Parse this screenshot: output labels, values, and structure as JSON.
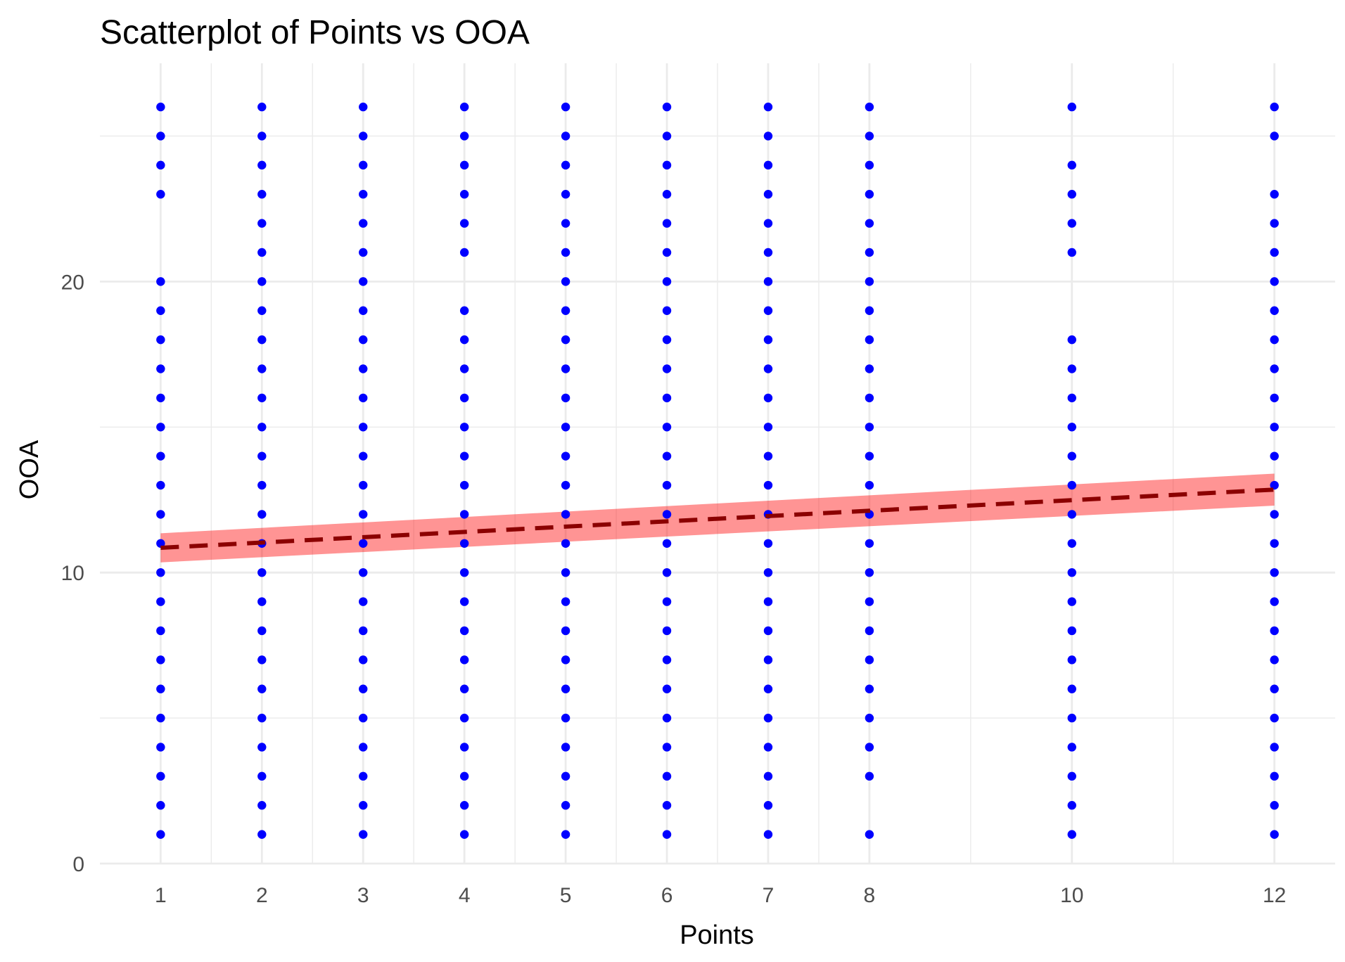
{
  "chart_data": {
    "type": "scatter",
    "title": "Scatterplot of Points vs  OOA",
    "xlabel": "Points",
    "ylabel": "OOA",
    "xlim": [
      0.4,
      12.6
    ],
    "ylim": [
      0,
      27.5
    ],
    "x_ticks": [
      1,
      2,
      3,
      4,
      5,
      6,
      7,
      8,
      10,
      12
    ],
    "x_tick_labels": [
      "1",
      "2",
      "3",
      "4",
      "5",
      "6",
      "7",
      "8",
      "10",
      "12"
    ],
    "y_ticks": [
      0,
      10,
      20
    ],
    "y_tick_labels": [
      "0",
      "10",
      "20"
    ],
    "grid": true,
    "legend": "none",
    "point_color": "#0000ff",
    "series": [
      {
        "points_by_x": [
          {
            "x": 1,
            "y": [
              1,
              2,
              3,
              4,
              5,
              6,
              7,
              8,
              9,
              10,
              11,
              12,
              13,
              14,
              15,
              16,
              17,
              18,
              19,
              20,
              23,
              24,
              25,
              26
            ]
          },
          {
            "x": 2,
            "y": [
              1,
              2,
              3,
              4,
              5,
              6,
              7,
              8,
              9,
              10,
              11,
              12,
              13,
              14,
              15,
              16,
              17,
              18,
              19,
              20,
              21,
              22,
              23,
              24,
              25,
              26
            ]
          },
          {
            "x": 3,
            "y": [
              1,
              2,
              3,
              4,
              5,
              6,
              7,
              8,
              9,
              10,
              11,
              12,
              13,
              14,
              15,
              16,
              17,
              18,
              19,
              20,
              21,
              22,
              23,
              24,
              25,
              26
            ]
          },
          {
            "x": 4,
            "y": [
              1,
              2,
              3,
              4,
              5,
              6,
              7,
              8,
              9,
              10,
              11,
              12,
              13,
              14,
              15,
              16,
              17,
              18,
              19,
              21,
              22,
              23,
              24,
              25,
              26
            ]
          },
          {
            "x": 5,
            "y": [
              1,
              2,
              3,
              4,
              5,
              6,
              7,
              8,
              9,
              10,
              11,
              12,
              13,
              14,
              15,
              16,
              17,
              18,
              19,
              20,
              21,
              22,
              23,
              24,
              25,
              26
            ]
          },
          {
            "x": 6,
            "y": [
              1,
              2,
              3,
              4,
              5,
              6,
              7,
              8,
              9,
              10,
              11,
              12,
              13,
              14,
              15,
              16,
              17,
              18,
              19,
              20,
              21,
              22,
              23,
              24,
              25,
              26
            ]
          },
          {
            "x": 7,
            "y": [
              1,
              2,
              3,
              4,
              5,
              6,
              7,
              8,
              9,
              10,
              11,
              12,
              13,
              14,
              15,
              16,
              17,
              18,
              19,
              20,
              21,
              22,
              23,
              24,
              25,
              26
            ]
          },
          {
            "x": 8,
            "y": [
              1,
              3,
              4,
              5,
              6,
              7,
              8,
              9,
              10,
              11,
              12,
              13,
              14,
              15,
              16,
              17,
              18,
              19,
              20,
              21,
              22,
              23,
              24,
              25,
              26
            ]
          },
          {
            "x": 10,
            "y": [
              1,
              2,
              3,
              4,
              5,
              6,
              7,
              8,
              9,
              10,
              11,
              12,
              13,
              14,
              15,
              16,
              17,
              18,
              21,
              22,
              23,
              24,
              26
            ]
          },
          {
            "x": 12,
            "y": [
              1,
              2,
              3,
              4,
              5,
              6,
              7,
              8,
              9,
              10,
              11,
              12,
              13,
              14,
              15,
              16,
              17,
              18,
              19,
              20,
              21,
              22,
              23,
              25,
              26
            ]
          }
        ]
      }
    ],
    "fit": {
      "type": "linear",
      "line_color": "#8b0000",
      "line_style": "dashed",
      "band_color": "#ff0000",
      "band_opacity": 0.42,
      "x": [
        1,
        12
      ],
      "y": [
        10.85,
        12.85
      ],
      "ci_lower": [
        10.35,
        12.3
      ],
      "ci_upper": [
        11.35,
        13.4
      ]
    }
  }
}
